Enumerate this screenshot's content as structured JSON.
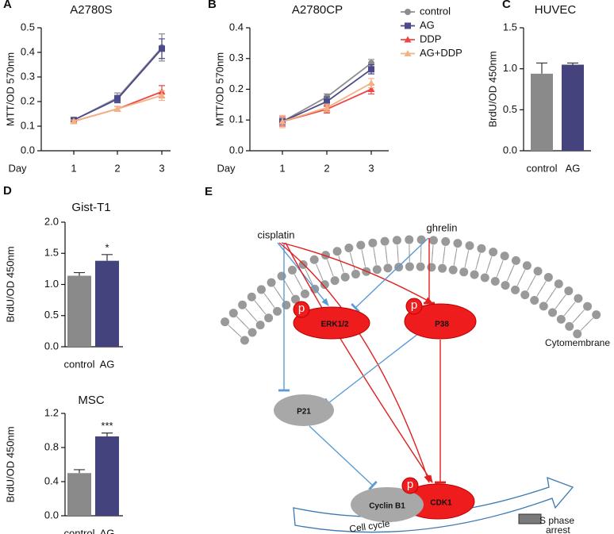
{
  "chart_data": [
    {
      "type": "line",
      "panel": "A",
      "title": "A2780S",
      "ylabel": "MTT/OD 570nm",
      "xlabel": "Day",
      "categories": [
        "1",
        "2",
        "3"
      ],
      "ylim": [
        0,
        0.5
      ],
      "yticks": [
        {
          "value": 0,
          "label": "0.0"
        },
        0.1,
        0.2,
        0.3,
        0.4,
        0.5
      ],
      "series": [
        {
          "color": "#8c8c8c",
          "marker": "circle",
          "values": [
            0.125,
            0.215,
            0.42
          ],
          "errors": [
            0.01,
            0.02,
            0.055
          ]
        },
        {
          "color": "#4b4a8a",
          "marker": "square",
          "values": [
            0.125,
            0.21,
            0.415
          ],
          "errors": [
            0.01,
            0.015,
            0.04
          ]
        },
        {
          "color": "#ef4545",
          "marker": "triangle",
          "values": [
            0.12,
            0.17,
            0.24
          ],
          "errors": [
            0.005,
            0.01,
            0.025
          ]
        },
        {
          "color": "#f4b183",
          "marker": "triangle",
          "values": [
            0.12,
            0.17,
            0.225
          ],
          "errors": [
            0.005,
            0.01,
            0.02
          ]
        }
      ]
    },
    {
      "type": "line",
      "panel": "B",
      "title": "A2780CP",
      "ylabel": "MTT/OD 570nm",
      "xlabel": "Day",
      "categories": [
        "1",
        "2",
        "3"
      ],
      "ylim": [
        0,
        0.4
      ],
      "yticks": [
        {
          "value": 0,
          "label": "0.0"
        },
        0.1,
        0.2,
        0.3,
        0.4
      ],
      "legend": "upper right",
      "series": [
        {
          "name": "control",
          "color": "#8c8c8c",
          "marker": "circle",
          "values": [
            0.095,
            0.175,
            0.285
          ],
          "errors": [
            0.01,
            0.01,
            0.012
          ]
        },
        {
          "name": "AG",
          "color": "#4b4a8a",
          "marker": "square",
          "values": [
            0.095,
            0.16,
            0.265
          ],
          "errors": [
            0.01,
            0.015,
            0.015
          ]
        },
        {
          "name": "DDP",
          "color": "#ef4545",
          "marker": "triangle",
          "values": [
            0.095,
            0.135,
            0.2
          ],
          "errors": [
            0.015,
            0.012,
            0.015
          ]
        },
        {
          "name": "AG+DDP",
          "color": "#f4b183",
          "marker": "triangle",
          "values": [
            0.095,
            0.14,
            0.22
          ],
          "errors": [
            0.02,
            0.012,
            0.015
          ]
        }
      ]
    },
    {
      "type": "bar",
      "panel": "C",
      "title": "HUVEC",
      "ylabel": "BrdU/OD 450nm",
      "categories": [
        "control",
        "AG"
      ],
      "values": [
        0.94,
        1.05
      ],
      "errors": [
        0.13,
        0.02
      ],
      "colors": [
        "#8a8a8a",
        "#44437e"
      ],
      "ylim": [
        0,
        1.5
      ],
      "yticks": [
        {
          "value": 0,
          "label": "0.0"
        },
        0.5,
        {
          "value": 1,
          "label": "1.0"
        },
        1.5
      ]
    },
    {
      "type": "bar",
      "panel": "D",
      "title": "Gist-T1",
      "ylabel": "BrdU/OD 450nm",
      "categories": [
        "control",
        "AG"
      ],
      "values": [
        1.14,
        1.38
      ],
      "errors": [
        0.05,
        0.1
      ],
      "colors": [
        "#8a8a8a",
        "#44437e"
      ],
      "annotation": "*",
      "ylim": [
        0,
        2
      ],
      "yticks": [
        {
          "value": 0,
          "label": "0.0"
        },
        0.5,
        {
          "value": 1,
          "label": "1.0"
        },
        1.5,
        {
          "value": 2,
          "label": "2.0"
        }
      ]
    },
    {
      "type": "bar",
      "title": "MSC",
      "ylabel": "BrdU/OD 450nm",
      "categories": [
        "control",
        "AG"
      ],
      "values": [
        0.5,
        0.93
      ],
      "errors": [
        0.04,
        0.04
      ],
      "colors": [
        "#8a8a8a",
        "#44437e"
      ],
      "annotation": "***",
      "ylim": [
        0,
        1.2
      ],
      "yticks": [
        {
          "value": 0,
          "label": "0.0"
        },
        0.4,
        0.8,
        1.2
      ]
    }
  ],
  "diagram": {
    "panel": "E",
    "phospho": "p",
    "nodes": [
      {
        "label": "cisplatin"
      },
      {
        "label": "ghrelin"
      },
      {
        "label": "ERK1/2"
      },
      {
        "label": "P38"
      },
      {
        "label": "P21"
      },
      {
        "label": "Cyclin B1"
      },
      {
        "label": "CDK1"
      },
      {
        "label": "Cytomembrane"
      },
      {
        "label": "Cell cycle"
      },
      {
        "label": [
          "S phase",
          "arrest"
        ]
      }
    ]
  }
}
